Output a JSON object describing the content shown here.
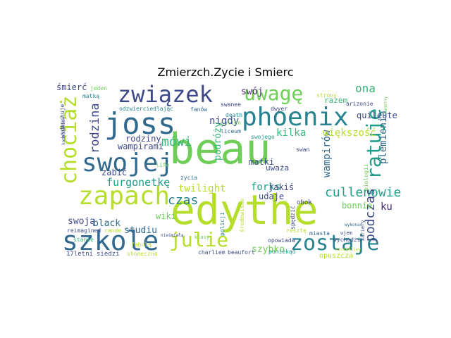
{
  "chart_data": {
    "type": "wordcloud",
    "title": "Zmierzch.Zycie i Smierc",
    "background": "#ffffff",
    "palette": [
      "#440154",
      "#482878",
      "#3e4989",
      "#31688e",
      "#26828e",
      "#1f9e89",
      "#35b779",
      "#6ece58",
      "#b5de2b",
      "#fde725"
    ],
    "words": [
      {
        "text": "beau",
        "color": "#6ece58"
      },
      {
        "text": "edythe",
        "color": "#b5de2b"
      },
      {
        "text": "phoenix",
        "color": "#26828e"
      },
      {
        "text": "joss",
        "color": "#31688e"
      },
      {
        "text": "związek",
        "color": "#3e4989"
      },
      {
        "text": "swojej",
        "color": "#31688e"
      },
      {
        "text": "zapach",
        "color": "#b5de2b"
      },
      {
        "text": "szkole",
        "color": "#31688e"
      },
      {
        "text": "zostaje",
        "color": "#26828e"
      },
      {
        "text": "uwagę",
        "color": "#6ece58"
      },
      {
        "text": "chociaż",
        "color": "#b5de2b"
      },
      {
        "text": "ratuje",
        "color": "#1f9e89"
      },
      {
        "text": "julie",
        "color": "#b5de2b"
      },
      {
        "text": "cullenowie",
        "color": "#1f9e89"
      },
      {
        "text": "furgonetkę",
        "color": "#1f9e89"
      },
      {
        "text": "ona",
        "color": "#35b779"
      },
      {
        "text": "swój",
        "color": "#482878"
      },
      {
        "text": "rodzina",
        "color": "#3e4989"
      },
      {
        "text": "nigdy",
        "color": "#3e4989"
      },
      {
        "text": "wampirami",
        "color": "#3e4989"
      },
      {
        "text": "rodziny",
        "color": "#3e4989"
      },
      {
        "text": "mówi",
        "color": "#35b779"
      },
      {
        "text": "czas",
        "color": "#26828e"
      },
      {
        "text": "twilight",
        "color": "#b5de2b"
      },
      {
        "text": "podczas",
        "color": "#3e4989"
      },
      {
        "text": "wampirów",
        "color": "#31688e"
      },
      {
        "text": "kilka",
        "color": "#35b779"
      },
      {
        "text": "większość",
        "color": "#b5de2b"
      },
      {
        "text": "razem",
        "color": "#35b779"
      },
      {
        "text": "quileute",
        "color": "#3e4989"
      },
      {
        "text": "plemienia",
        "color": "#31688e"
      },
      {
        "text": "podróży",
        "color": "#35b779"
      },
      {
        "text": "forks",
        "color": "#1f9e89"
      },
      {
        "text": "jakiś",
        "color": "#3e4989"
      },
      {
        "text": "udaje",
        "color": "#3e4989"
      },
      {
        "text": "ku",
        "color": "#482878"
      },
      {
        "text": "bonnie",
        "color": "#6ece58"
      },
      {
        "text": "swoją",
        "color": "#3e4989"
      },
      {
        "text": "black",
        "color": "#31688e"
      },
      {
        "text": "studiu",
        "color": "#31688e"
      },
      {
        "text": "wiki",
        "color": "#6ece58"
      },
      {
        "text": "szybko",
        "color": "#6ece58"
      },
      {
        "text": "zabić",
        "color": "#3e4989"
      },
      {
        "text": "matki",
        "color": "#3e4989"
      },
      {
        "text": "uważa",
        "color": "#3e4989"
      },
      {
        "text": "śmierć",
        "color": "#3e4989"
      },
      {
        "text": "matką",
        "color": "#26828e"
      },
      {
        "text": "jeden",
        "color": "#6ece58"
      },
      {
        "text": "odzwierciedlając",
        "color": "#26828e"
      },
      {
        "text": "fanów",
        "color": "#31688e"
      },
      {
        "text": "death",
        "color": "#26828e"
      },
      {
        "text": "dwyer",
        "color": "#3e4989"
      },
      {
        "text": "arizonie",
        "color": "#3e4989"
      },
      {
        "text": "strony",
        "color": "#b5de2b"
      },
      {
        "text": "liceum",
        "color": "#31688e"
      },
      {
        "text": "swojego",
        "color": "#1f9e89"
      },
      {
        "text": "swan",
        "color": "#3e4989"
      },
      {
        "text": "cullen",
        "color": "#6ece58"
      },
      {
        "text": "reimagined",
        "color": "#3e4989"
      },
      {
        "text": "stanie",
        "color": "#35b779"
      },
      {
        "text": "fabułą",
        "color": "#b5de2b"
      },
      {
        "text": "klasy",
        "color": "#6ece58"
      },
      {
        "text": "policji",
        "color": "#26828e"
      },
      {
        "text": "środowisko",
        "color": "#b5de2b"
      },
      {
        "text": "resztę",
        "color": "#b5de2b"
      },
      {
        "text": "miasta",
        "color": "#31688e"
      },
      {
        "text": "opowiada",
        "color": "#3e4989"
      },
      {
        "text": "poniekąd",
        "color": "#1f9e89"
      },
      {
        "text": "opuszcza",
        "color": "#b5de2b"
      },
      {
        "text": "charliem",
        "color": "#3e4989"
      },
      {
        "text": "beaufort",
        "color": "#3e4989"
      },
      {
        "text": "17letni",
        "color": "#3e4989"
      },
      {
        "text": "siedzi",
        "color": "#3e4989"
      },
      {
        "text": "słoneczna",
        "color": "#b5de2b"
      },
      {
        "text": "wychodzi",
        "color": "#3e4989"
      },
      {
        "text": "kariery",
        "color": "#3e4989"
      },
      {
        "text": "biologii",
        "color": "#6ece58"
      },
      {
        "text": "wydmuchuje",
        "color": "#3e4989"
      },
      {
        "text": "ujem",
        "color": "#3e4989"
      },
      {
        "text": "life",
        "color": "#6ece58"
      },
      {
        "text": "zycia",
        "color": "#31688e"
      },
      {
        "text": "rande",
        "color": "#b5de2b"
      },
      {
        "text": "obok",
        "color": "#3e4989"
      },
      {
        "text": "spędzić",
        "color": "#3e4989"
      },
      {
        "text": "swanee",
        "color": "#3e4989"
      },
      {
        "text": "komendanien",
        "color": "#3e4989"
      },
      {
        "text": "nieśmiałą",
        "color": "#3e4989"
      },
      {
        "text": "szczęśliwy",
        "color": "#b5de2b"
      },
      {
        "text": "samotny",
        "color": "#6ece58"
      },
      {
        "text": "wykonać",
        "color": "#31688e"
      }
    ]
  }
}
